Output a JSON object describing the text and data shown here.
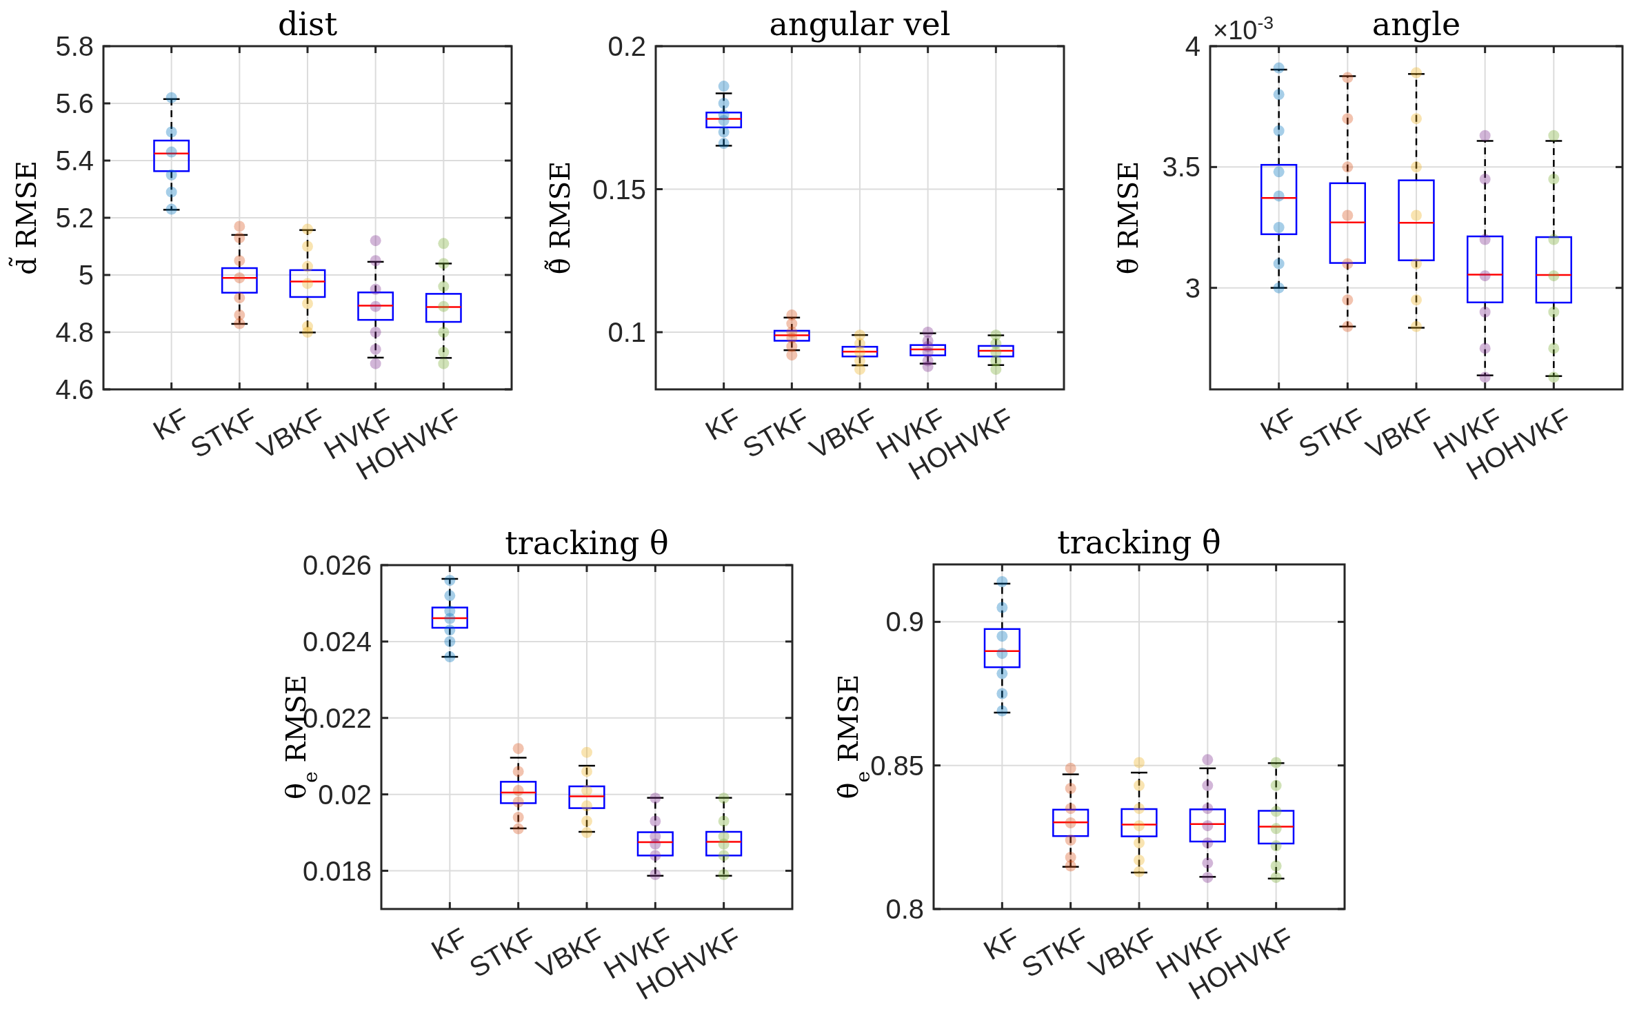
{
  "chart_data": [
    {
      "type": "box",
      "title": "dist",
      "ylabel": "d̃ RMSE",
      "categories": [
        "KF",
        "STKF",
        "VBKF",
        "HVKF",
        "HOHVKF"
      ],
      "ylim": [
        4.6,
        5.8
      ],
      "yticks": [
        4.6,
        4.8,
        5,
        5.2,
        5.4,
        5.6,
        5.8
      ],
      "grid": true,
      "series": [
        {
          "type": "box",
          "color": "#0000ff",
          "boxes": [
            {
              "low": 5.228,
              "q1": 5.363,
              "median": 5.425,
              "q3": 5.47,
              "high": 5.615
            },
            {
              "low": 4.829,
              "q1": 4.938,
              "median": 4.99,
              "q3": 5.024,
              "high": 5.14
            },
            {
              "low": 4.799,
              "q1": 4.923,
              "median": 4.977,
              "q3": 5.017,
              "high": 5.157
            },
            {
              "low": 4.711,
              "q1": 4.843,
              "median": 4.893,
              "q3": 4.939,
              "high": 5.046
            },
            {
              "low": 4.71,
              "q1": 4.836,
              "median": 4.888,
              "q3": 4.934,
              "high": 5.04
            }
          ]
        },
        {
          "type": "scatter",
          "color": "#0072bd",
          "x": [
            "KF",
            "KF",
            "KF",
            "KF",
            "KF",
            "KF"
          ],
          "values": [
            5.62,
            5.5,
            5.43,
            5.35,
            5.29,
            5.23
          ]
        },
        {
          "type": "scatter",
          "color": "#d95319",
          "x": [
            "STKF",
            "STKF",
            "STKF",
            "STKF",
            "STKF",
            "STKF",
            "STKF"
          ],
          "values": [
            5.17,
            5.13,
            5.05,
            4.99,
            4.92,
            4.86,
            4.83
          ]
        },
        {
          "type": "scatter",
          "color": "#edb120",
          "x": [
            "VBKF",
            "VBKF",
            "VBKF",
            "VBKF",
            "VBKF",
            "VBKF",
            "VBKF"
          ],
          "values": [
            5.16,
            5.1,
            5.03,
            4.97,
            4.9,
            4.82,
            4.8
          ]
        },
        {
          "type": "scatter",
          "color": "#7e2f8e",
          "x": [
            "HVKF",
            "HVKF",
            "HVKF",
            "HVKF",
            "HVKF",
            "HVKF",
            "HVKF"
          ],
          "values": [
            5.12,
            5.05,
            4.95,
            4.89,
            4.8,
            4.74,
            4.69
          ]
        },
        {
          "type": "scatter",
          "color": "#77ac30",
          "x": [
            "HOHVKF",
            "HOHVKF",
            "HOHVKF",
            "HOHVKF",
            "HOHVKF",
            "HOHVKF",
            "HOHVKF"
          ],
          "values": [
            5.11,
            5.04,
            4.96,
            4.89,
            4.8,
            4.73,
            4.69
          ]
        }
      ]
    },
    {
      "type": "box",
      "title": "angular vel",
      "ylabel": "θ̇̃ RMSE",
      "categories": [
        "KF",
        "STKF",
        "VBKF",
        "HVKF",
        "HOHVKF"
      ],
      "ylim": [
        0.08,
        0.2
      ],
      "yticks": [
        0.1,
        0.15,
        0.2
      ],
      "grid": true,
      "series": [
        {
          "type": "box",
          "color": "#0000ff",
          "boxes": [
            {
              "low": 0.1652,
              "q1": 0.1716,
              "median": 0.1746,
              "q3": 0.1768,
              "high": 0.1835
            },
            {
              "low": 0.0937,
              "q1": 0.097,
              "median": 0.0989,
              "q3": 0.1005,
              "high": 0.1051
            },
            {
              "low": 0.0884,
              "q1": 0.0915,
              "median": 0.0932,
              "q3": 0.0949,
              "high": 0.099
            },
            {
              "low": 0.089,
              "q1": 0.0919,
              "median": 0.094,
              "q3": 0.0955,
              "high": 0.0996
            },
            {
              "low": 0.0885,
              "q1": 0.0915,
              "median": 0.0935,
              "q3": 0.0952,
              "high": 0.0989
            }
          ]
        },
        {
          "type": "scatter",
          "color": "#0072bd",
          "x": [
            "KF",
            "KF",
            "KF",
            "KF",
            "KF",
            "KF"
          ],
          "values": [
            0.186,
            0.18,
            0.176,
            0.174,
            0.17,
            0.166
          ]
        },
        {
          "type": "scatter",
          "color": "#d95319",
          "x": [
            "STKF",
            "STKF",
            "STKF",
            "STKF",
            "STKF",
            "STKF"
          ],
          "values": [
            0.106,
            0.103,
            0.1,
            0.098,
            0.095,
            0.092
          ]
        },
        {
          "type": "scatter",
          "color": "#edb120",
          "x": [
            "VBKF",
            "VBKF",
            "VBKF",
            "VBKF",
            "VBKF"
          ],
          "values": [
            0.099,
            0.096,
            0.093,
            0.09,
            0.087
          ]
        },
        {
          "type": "scatter",
          "color": "#7e2f8e",
          "x": [
            "HVKF",
            "HVKF",
            "HVKF",
            "HVKF",
            "HVKF",
            "HVKF"
          ],
          "values": [
            0.1,
            0.097,
            0.095,
            0.093,
            0.09,
            0.088
          ]
        },
        {
          "type": "scatter",
          "color": "#77ac30",
          "x": [
            "HOHVKF",
            "HOHVKF",
            "HOHVKF",
            "HOHVKF",
            "HOHVKF"
          ],
          "values": [
            0.099,
            0.096,
            0.093,
            0.09,
            0.087
          ]
        }
      ]
    },
    {
      "type": "box",
      "title": "angle",
      "ylabel": "θ̃ RMSE",
      "annotations": [
        "×10$^{-3}$"
      ],
      "categories": [
        "KF",
        "STKF",
        "VBKF",
        "HVKF",
        "HOHVKF"
      ],
      "ylim": [
        2.58,
        4
      ],
      "yticks": [
        3,
        3.5,
        4
      ],
      "grid": true,
      "series": [
        {
          "type": "box",
          "color": "#0000ff",
          "boxes": [
            {
              "low": 3.0,
              "q1": 3.222,
              "median": 3.372,
              "q3": 3.509,
              "high": 3.903
            },
            {
              "low": 2.84,
              "q1": 3.103,
              "median": 3.271,
              "q3": 3.433,
              "high": 3.876
            },
            {
              "low": 2.835,
              "q1": 3.114,
              "median": 3.269,
              "q3": 3.445,
              "high": 3.885
            },
            {
              "low": 2.638,
              "q1": 2.94,
              "median": 3.055,
              "q3": 3.213,
              "high": 3.608
            },
            {
              "low": 2.635,
              "q1": 2.939,
              "median": 3.053,
              "q3": 3.21,
              "high": 3.608
            }
          ]
        },
        {
          "type": "scatter",
          "color": "#0072bd",
          "x": [
            "KF",
            "KF",
            "KF",
            "KF",
            "KF",
            "KF",
            "KF",
            "KF"
          ],
          "values": [
            3.91,
            3.8,
            3.65,
            3.48,
            3.38,
            3.25,
            3.1,
            3.0
          ]
        },
        {
          "type": "scatter",
          "color": "#d95319",
          "x": [
            "STKF",
            "STKF",
            "STKF",
            "STKF",
            "STKF",
            "STKF",
            "STKF"
          ],
          "values": [
            3.87,
            3.7,
            3.5,
            3.3,
            3.1,
            2.95,
            2.84
          ]
        },
        {
          "type": "scatter",
          "color": "#edb120",
          "x": [
            "VBKF",
            "VBKF",
            "VBKF",
            "VBKF",
            "VBKF",
            "VBKF",
            "VBKF"
          ],
          "values": [
            3.89,
            3.7,
            3.5,
            3.3,
            3.1,
            2.95,
            2.84
          ]
        },
        {
          "type": "scatter",
          "color": "#7e2f8e",
          "x": [
            "HVKF",
            "HVKF",
            "HVKF",
            "HVKF",
            "HVKF",
            "HVKF",
            "HVKF"
          ],
          "values": [
            3.63,
            3.45,
            3.2,
            3.05,
            2.9,
            2.75,
            2.63
          ]
        },
        {
          "type": "scatter",
          "color": "#77ac30",
          "x": [
            "HOHVKF",
            "HOHVKF",
            "HOHVKF",
            "HOHVKF",
            "HOHVKF",
            "HOHVKF",
            "HOHVKF"
          ],
          "values": [
            3.63,
            3.45,
            3.2,
            3.05,
            2.9,
            2.75,
            2.63
          ]
        }
      ]
    },
    {
      "type": "box",
      "title": "tracking θ",
      "ylabel": "θ$_{e}$ RMSE",
      "categories": [
        "KF",
        "STKF",
        "VBKF",
        "HVKF",
        "HOHVKF"
      ],
      "ylim": [
        0.017,
        0.026
      ],
      "yticks": [
        0.018,
        0.02,
        0.022,
        0.024,
        0.026
      ],
      "grid": true,
      "series": [
        {
          "type": "box",
          "color": "#0000ff",
          "boxes": [
            {
              "low": 0.0236,
              "q1": 0.02436,
              "median": 0.02461,
              "q3": 0.02489,
              "high": 0.02564
            },
            {
              "low": 0.01911,
              "q1": 0.01977,
              "median": 0.02005,
              "q3": 0.02033,
              "high": 0.02096
            },
            {
              "low": 0.01902,
              "q1": 0.01964,
              "median": 0.01995,
              "q3": 0.02021,
              "high": 0.02075
            },
            {
              "low": 0.01787,
              "q1": 0.0184,
              "median": 0.01875,
              "q3": 0.01901,
              "high": 0.01991
            },
            {
              "low": 0.01787,
              "q1": 0.0184,
              "median": 0.01876,
              "q3": 0.01902,
              "high": 0.01991
            }
          ]
        },
        {
          "type": "scatter",
          "color": "#0072bd",
          "x": [
            "KF",
            "KF",
            "KF",
            "KF",
            "KF",
            "KF",
            "KF"
          ],
          "values": [
            0.0256,
            0.0252,
            0.0248,
            0.0246,
            0.0243,
            0.024,
            0.0236
          ]
        },
        {
          "type": "scatter",
          "color": "#d95319",
          "x": [
            "STKF",
            "STKF",
            "STKF",
            "STKF",
            "STKF",
            "STKF"
          ],
          "values": [
            0.0212,
            0.0206,
            0.0201,
            0.0198,
            0.0194,
            0.0191
          ]
        },
        {
          "type": "scatter",
          "color": "#edb120",
          "x": [
            "VBKF",
            "VBKF",
            "VBKF",
            "VBKF",
            "VBKF",
            "VBKF"
          ],
          "values": [
            0.0211,
            0.0206,
            0.0201,
            0.0197,
            0.0193,
            0.019
          ]
        },
        {
          "type": "scatter",
          "color": "#7e2f8e",
          "x": [
            "HVKF",
            "HVKF",
            "HVKF",
            "HVKF",
            "HVKF",
            "HVKF"
          ],
          "values": [
            0.0199,
            0.0193,
            0.0189,
            0.0187,
            0.0184,
            0.0179
          ]
        },
        {
          "type": "scatter",
          "color": "#77ac30",
          "x": [
            "HOHVKF",
            "HOHVKF",
            "HOHVKF",
            "HOHVKF",
            "HOHVKF",
            "HOHVKF"
          ],
          "values": [
            0.0199,
            0.0193,
            0.0189,
            0.0187,
            0.0184,
            0.0179
          ]
        }
      ]
    },
    {
      "type": "box",
      "title": "tracking θ̇",
      "ylabel": "θ̇$_{e}$ RMSE",
      "categories": [
        "KF",
        "STKF",
        "VBKF",
        "HVKF",
        "HOHVKF"
      ],
      "ylim": [
        0.8,
        0.92
      ],
      "yticks": [
        0.8,
        0.85,
        0.9
      ],
      "grid": true,
      "series": [
        {
          "type": "box",
          "color": "#0000ff",
          "boxes": [
            {
              "low": 0.8684,
              "q1": 0.8842,
              "median": 0.8898,
              "q3": 0.8975,
              "high": 0.9133
            },
            {
              "low": 0.8147,
              "q1": 0.8254,
              "median": 0.8302,
              "q3": 0.8346,
              "high": 0.8469
            },
            {
              "low": 0.8127,
              "q1": 0.8253,
              "median": 0.8294,
              "q3": 0.8348,
              "high": 0.8475
            },
            {
              "low": 0.8112,
              "q1": 0.8235,
              "median": 0.8296,
              "q3": 0.8347,
              "high": 0.849
            },
            {
              "low": 0.8106,
              "q1": 0.8228,
              "median": 0.8287,
              "q3": 0.8342,
              "high": 0.8508
            }
          ]
        },
        {
          "type": "scatter",
          "color": "#0072bd",
          "x": [
            "KF",
            "KF",
            "KF",
            "KF",
            "KF",
            "KF",
            "KF"
          ],
          "values": [
            0.914,
            0.905,
            0.895,
            0.889,
            0.882,
            0.875,
            0.869
          ]
        },
        {
          "type": "scatter",
          "color": "#d95319",
          "x": [
            "STKF",
            "STKF",
            "STKF",
            "STKF",
            "STKF",
            "STKF",
            "STKF"
          ],
          "values": [
            0.849,
            0.842,
            0.835,
            0.83,
            0.824,
            0.818,
            0.815
          ]
        },
        {
          "type": "scatter",
          "color": "#edb120",
          "x": [
            "VBKF",
            "VBKF",
            "VBKF",
            "VBKF",
            "VBKF",
            "VBKF",
            "VBKF"
          ],
          "values": [
            0.851,
            0.843,
            0.835,
            0.829,
            0.823,
            0.817,
            0.813
          ]
        },
        {
          "type": "scatter",
          "color": "#7e2f8e",
          "x": [
            "HVKF",
            "HVKF",
            "HVKF",
            "HVKF",
            "HVKF",
            "HVKF",
            "HVKF"
          ],
          "values": [
            0.852,
            0.843,
            0.835,
            0.829,
            0.823,
            0.816,
            0.811
          ]
        },
        {
          "type": "scatter",
          "color": "#77ac30",
          "x": [
            "HOHVKF",
            "HOHVKF",
            "HOHVKF",
            "HOHVKF",
            "HOHVKF",
            "HOHVKF",
            "HOHVKF"
          ],
          "values": [
            0.851,
            0.843,
            0.834,
            0.828,
            0.822,
            0.815,
            0.811
          ]
        }
      ]
    }
  ]
}
